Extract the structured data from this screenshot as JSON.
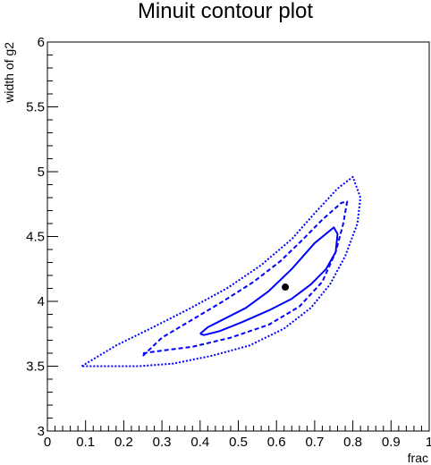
{
  "chart_data": {
    "type": "line",
    "title": "Minuit contour plot",
    "xlabel": "frac",
    "ylabel": "width of g2",
    "xlim": [
      0,
      1
    ],
    "ylim": [
      3,
      6
    ],
    "xticks": [
      "0",
      "0.1",
      "0.2",
      "0.3",
      "0.4",
      "0.5",
      "0.6",
      "0.7",
      "0.8",
      "0.9",
      "1"
    ],
    "yticks": [
      "3",
      "3.5",
      "4",
      "4.5",
      "5",
      "5.5",
      "6"
    ],
    "grid": false,
    "series": [
      {
        "style": "solid",
        "color": "#0000ff",
        "x": [
          0.4,
          0.42,
          0.46,
          0.52,
          0.58,
          0.64,
          0.7,
          0.75,
          0.76,
          0.755,
          0.73,
          0.69,
          0.64,
          0.58,
          0.51,
          0.45,
          0.41,
          0.4
        ],
        "y": [
          3.75,
          3.8,
          3.86,
          3.95,
          4.08,
          4.25,
          4.45,
          4.57,
          4.52,
          4.38,
          4.25,
          4.13,
          4.02,
          3.93,
          3.84,
          3.77,
          3.74,
          3.75
        ]
      },
      {
        "style": "dashed",
        "color": "#0000ff",
        "x": [
          0.25,
          0.3,
          0.38,
          0.46,
          0.54,
          0.61,
          0.67,
          0.72,
          0.77,
          0.785,
          0.775,
          0.755,
          0.72,
          0.66,
          0.58,
          0.48,
          0.38,
          0.3,
          0.25,
          0.25
        ],
        "y": [
          3.58,
          3.72,
          3.86,
          4.0,
          4.15,
          4.31,
          4.48,
          4.63,
          4.76,
          4.77,
          4.6,
          4.38,
          4.15,
          3.96,
          3.82,
          3.72,
          3.65,
          3.62,
          3.6,
          3.58
        ]
      },
      {
        "style": "dotted",
        "color": "#0000ff",
        "x": [
          0.09,
          0.18,
          0.27,
          0.37,
          0.47,
          0.56,
          0.64,
          0.7,
          0.76,
          0.8,
          0.82,
          0.812,
          0.78,
          0.74,
          0.69,
          0.62,
          0.53,
          0.43,
          0.33,
          0.24,
          0.18,
          0.13,
          0.09
        ],
        "y": [
          3.5,
          3.66,
          3.79,
          3.94,
          4.1,
          4.28,
          4.48,
          4.68,
          4.87,
          4.96,
          4.8,
          4.6,
          4.35,
          4.13,
          3.95,
          3.79,
          3.66,
          3.58,
          3.52,
          3.5,
          3.5,
          3.5,
          3.5
        ]
      }
    ],
    "points": [
      {
        "x": 0.623,
        "y": 4.11
      }
    ]
  }
}
